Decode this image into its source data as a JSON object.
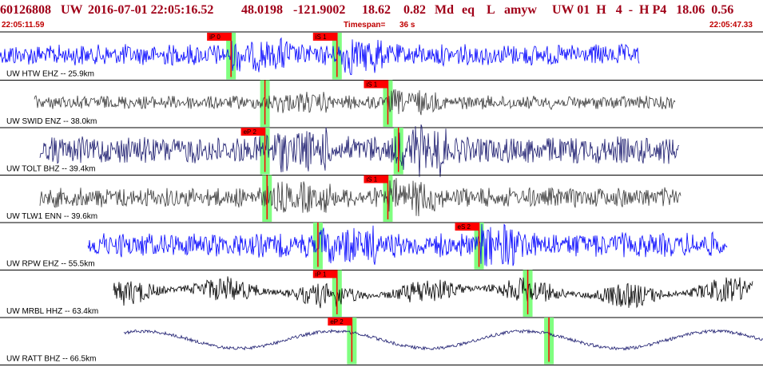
{
  "header": {
    "event_id": "60126808",
    "network": "UW",
    "origin_datetime": "2016-07-01 22:05:16.52",
    "latitude": "48.0198",
    "longitude": "-121.9002",
    "depth": "18.62",
    "magnitude": "0.82",
    "mag_type": "Md",
    "event_type": "eq",
    "location_code": "L",
    "author": "amyw",
    "summary_right": "UW 01  H   4  -  H P4   18.06  0.56"
  },
  "subheader": {
    "start_time": "22:05:11.59",
    "timespan_label": "Timespan=",
    "timespan_value": "36 s",
    "end_time": "22:05:47.33"
  },
  "colors": {
    "header_text": "#a00018",
    "subheader_text": "#c00000",
    "trace_blue": "#0000ff",
    "trace_gray": "#3a3a3a",
    "trace_black": "#000000",
    "trace_navy": "#1a1a6e",
    "pick_box": "#ff0000",
    "pick_window": "#80ff80",
    "divider": "#000000"
  },
  "channels": [
    {
      "label": "UW HTW EHZ -- 25.9km",
      "trace_color": "blue",
      "pick_label": "iP 0",
      "pick_label_2": "iS 1",
      "p_time": 10.9,
      "s_time": 15.9
    },
    {
      "label": "UW SWID ENZ -- 38.0km",
      "trace_color": "gray",
      "pick_label": "",
      "pick_label_2": "iS 1",
      "p_time": 12.5,
      "s_time": 18.3
    },
    {
      "label": "UW TOLT BHZ -- 39.4km",
      "trace_color": "navy",
      "pick_label": "eP 2",
      "pick_label_2": "",
      "p_time": 12.5,
      "s_time": 18.8
    },
    {
      "label": "UW TLW1 ENN -- 39.6km",
      "trace_color": "gray",
      "pick_label": "",
      "pick_label_2": "iS 1",
      "p_time": 12.6,
      "s_time": 18.3
    },
    {
      "label": "UW RPW EHZ -- 55.5km",
      "trace_color": "blue",
      "pick_label": "",
      "pick_label_2": "eS 2",
      "p_time": 15.0,
      "s_time": 22.6
    },
    {
      "label": "UW MRBL HHZ -- 63.4km",
      "trace_color": "black",
      "pick_label": "iP 1",
      "pick_label_2": "",
      "p_time": 15.9,
      "s_time": 24.9
    },
    {
      "label": "UW RATT BHZ -- 66.5km",
      "trace_color": "navy",
      "pick_label": "eP 2",
      "pick_label_2": "",
      "p_time": 16.6,
      "s_time": 25.9
    }
  ]
}
